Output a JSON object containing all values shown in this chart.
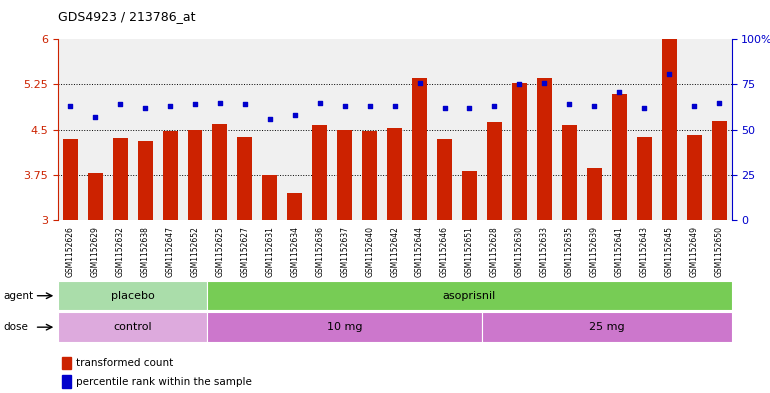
{
  "title": "GDS4923 / 213786_at",
  "samples": [
    "GSM1152626",
    "GSM1152629",
    "GSM1152632",
    "GSM1152638",
    "GSM1152647",
    "GSM1152652",
    "GSM1152625",
    "GSM1152627",
    "GSM1152631",
    "GSM1152634",
    "GSM1152636",
    "GSM1152637",
    "GSM1152640",
    "GSM1152642",
    "GSM1152644",
    "GSM1152646",
    "GSM1152651",
    "GSM1152628",
    "GSM1152630",
    "GSM1152633",
    "GSM1152635",
    "GSM1152639",
    "GSM1152641",
    "GSM1152643",
    "GSM1152645",
    "GSM1152649",
    "GSM1152650"
  ],
  "bar_values": [
    4.35,
    3.78,
    4.37,
    4.32,
    4.48,
    4.5,
    4.6,
    4.38,
    3.75,
    3.45,
    4.57,
    4.5,
    4.48,
    4.52,
    5.35,
    4.34,
    3.82,
    4.62,
    5.28,
    5.35,
    4.58,
    3.87,
    5.1,
    4.38,
    6.0,
    4.42,
    4.65
  ],
  "percentile_values": [
    63,
    57,
    64,
    62,
    63,
    64,
    65,
    64,
    56,
    58,
    65,
    63,
    63,
    63,
    76,
    62,
    62,
    63,
    75,
    76,
    64,
    63,
    71,
    62,
    81,
    63,
    65
  ],
  "ylim_left": [
    3.0,
    6.0
  ],
  "ylim_right": [
    0,
    100
  ],
  "yticks_left": [
    3.0,
    3.75,
    4.5,
    5.25,
    6.0
  ],
  "yticks_right": [
    0,
    25,
    50,
    75,
    100
  ],
  "hlines": [
    3.75,
    4.5,
    5.25
  ],
  "bar_color": "#cc2200",
  "dot_color": "#0000cc",
  "bar_baseline": 3.0,
  "agent_groups": [
    {
      "label": "placebo",
      "start": 0,
      "end": 6,
      "color": "#aaddaa"
    },
    {
      "label": "asoprisnil",
      "start": 6,
      "end": 27,
      "color": "#77cc55"
    }
  ],
  "dose_groups": [
    {
      "label": "control",
      "start": 0,
      "end": 6,
      "color": "#ddaadd"
    },
    {
      "label": "10 mg",
      "start": 6,
      "end": 17,
      "color": "#cc77cc"
    },
    {
      "label": "25 mg",
      "start": 17,
      "end": 27,
      "color": "#cc77cc"
    }
  ],
  "agent_label": "agent",
  "dose_label": "dose",
  "background_color": "#ffffff",
  "plot_bg_color": "#f0f0f0"
}
